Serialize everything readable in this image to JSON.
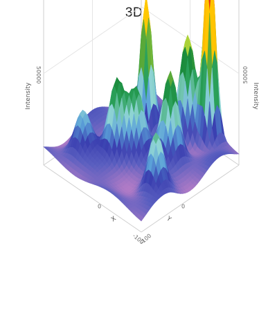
{
  "chart_data": {
    "type": "surface3d",
    "title": "3D",
    "axes": {
      "x": {
        "label": "X",
        "range": [
          -100,
          100
        ],
        "ticks": [
          "-100",
          "0"
        ]
      },
      "y": {
        "label": "Y",
        "range": [
          -100,
          100
        ],
        "ticks": [
          "-100",
          "0"
        ]
      },
      "z": {
        "label": "Intensity",
        "range": [
          0,
          100000
        ],
        "ticks": [
          "50000"
        ]
      }
    },
    "grid": true,
    "colorscale": [
      "#c98fc9",
      "#b07bc6",
      "#5a5fc0",
      "#3a3fb0",
      "#5aa0d8",
      "#8fd4d4",
      "#2aa05a",
      "#1a8a3a",
      "#b8d838",
      "#ffe000",
      "#ff9a00",
      "#e83010"
    ],
    "peaks": [
      {
        "x": 50,
        "y": -90,
        "z": 100000
      },
      {
        "x": -30,
        "y": -40,
        "z": 70000
      },
      {
        "x": 20,
        "y": -75,
        "z": 55000
      },
      {
        "x": 40,
        "y": -20,
        "z": 45000
      },
      {
        "x": -20,
        "y": 30,
        "z": 40000
      },
      {
        "x": 0,
        "y": 10,
        "z": 35000
      },
      {
        "x": 70,
        "y": 40,
        "z": 30000
      },
      {
        "x": -60,
        "y": 60,
        "z": 20000
      }
    ],
    "base_level": 8000
  }
}
